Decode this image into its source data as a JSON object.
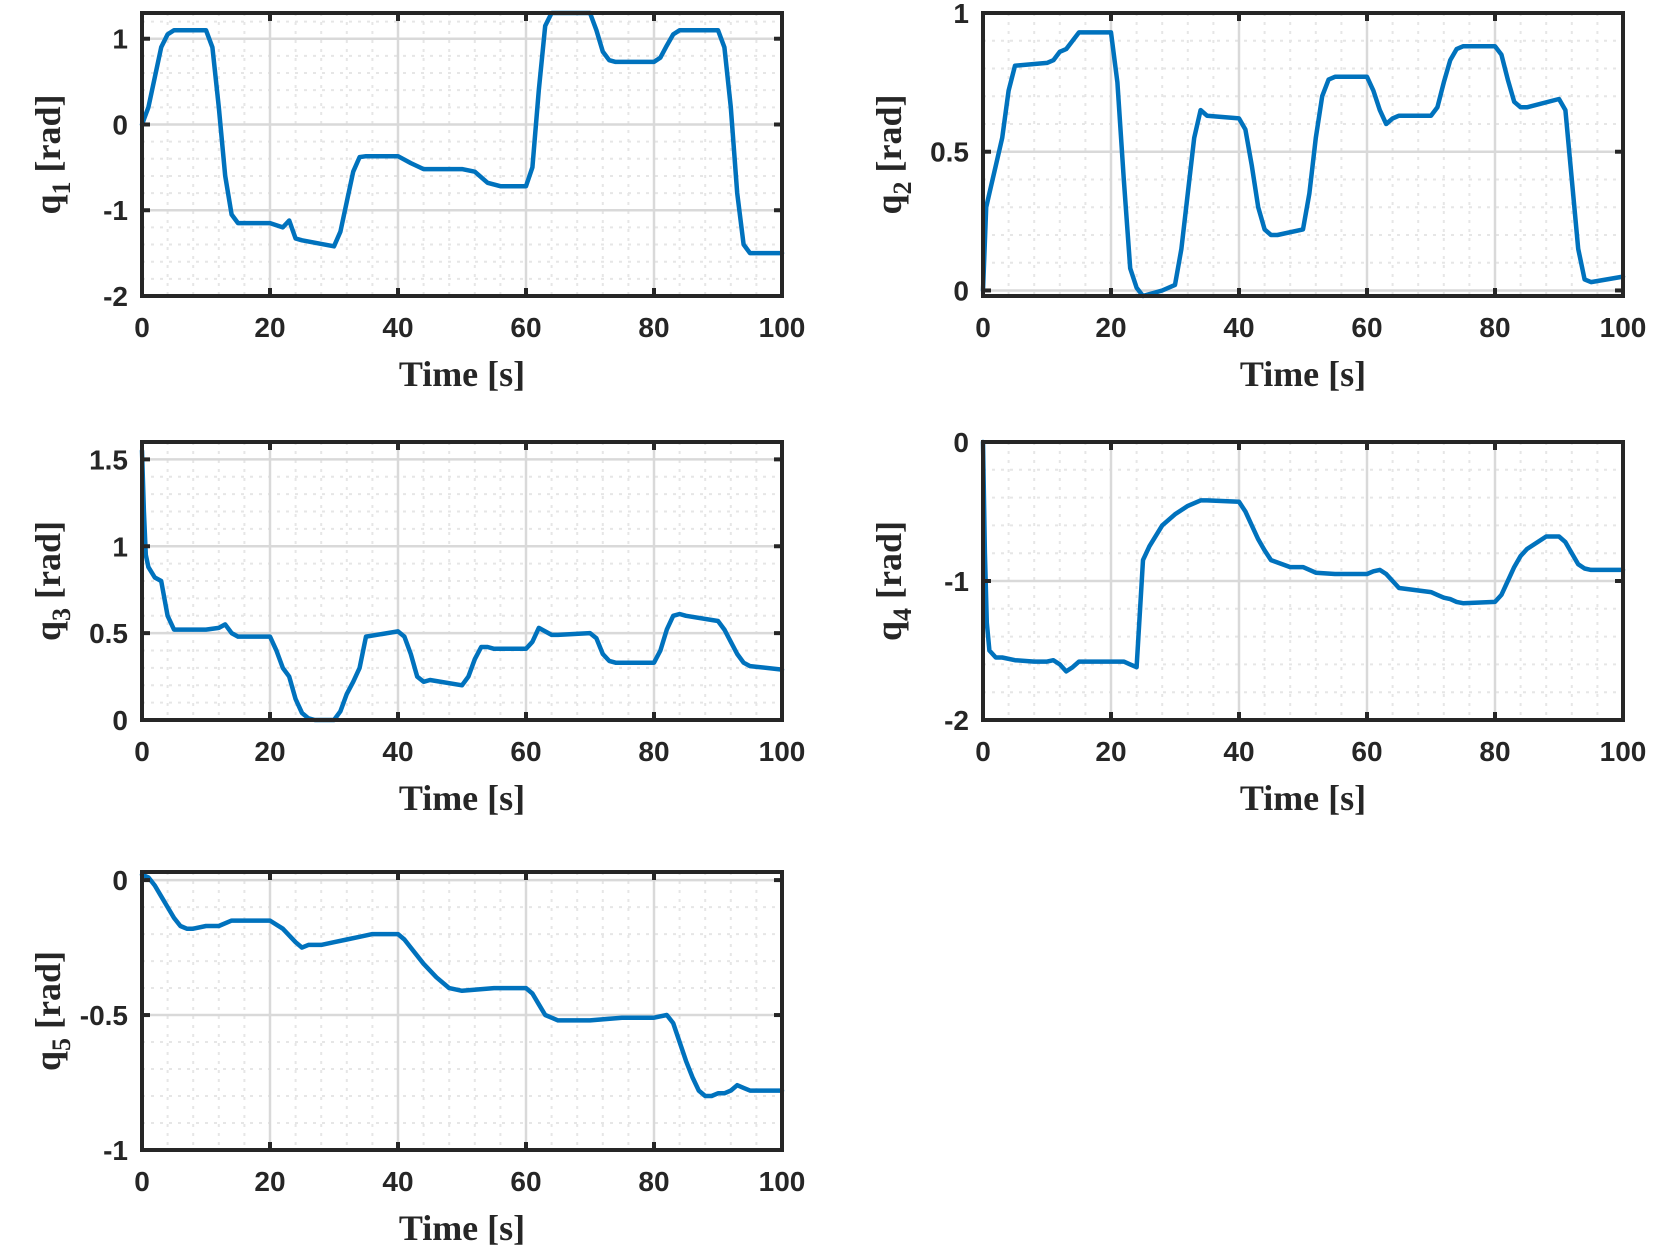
{
  "chart_data": [
    {
      "type": "line",
      "id": "q1",
      "ylabel_main": "q",
      "ylabel_sub": "1",
      "ylabel_unit": " [rad]",
      "xlabel": "Time [s]",
      "xlim": [
        0,
        100
      ],
      "ylim": [
        -2,
        1.3
      ],
      "xticks": [
        0,
        20,
        40,
        60,
        80,
        100
      ],
      "xtick_labels": [
        "0",
        "20",
        "40",
        "60",
        "80",
        "100"
      ],
      "yticks": [
        -2,
        -1,
        0,
        1
      ],
      "ytick_labels": [
        "-2",
        "-1",
        "0",
        "1"
      ],
      "grid": true,
      "series": [
        {
          "name": "q1",
          "color": "#0072BD",
          "x": [
            0,
            1,
            2,
            3,
            4,
            5,
            10,
            11,
            12,
            13,
            14,
            15,
            20,
            22,
            23,
            24,
            25,
            30,
            31,
            32,
            33,
            34,
            35,
            40,
            42,
            44,
            46,
            50,
            52,
            54,
            56,
            60,
            61,
            62,
            63,
            64,
            65,
            70,
            71,
            72,
            73,
            74,
            75,
            80,
            81,
            82,
            83,
            84,
            85,
            90,
            91,
            92,
            93,
            94,
            95,
            100
          ],
          "y": [
            0,
            0.2,
            0.55,
            0.9,
            1.05,
            1.1,
            1.1,
            0.9,
            0.2,
            -0.6,
            -1.05,
            -1.15,
            -1.15,
            -1.2,
            -1.12,
            -1.33,
            -1.35,
            -1.42,
            -1.25,
            -0.9,
            -0.55,
            -0.38,
            -0.37,
            -0.37,
            -0.45,
            -0.52,
            -0.52,
            -0.52,
            -0.55,
            -0.68,
            -0.72,
            -0.72,
            -0.5,
            0.4,
            1.15,
            1.3,
            1.3,
            1.3,
            1.1,
            0.85,
            0.75,
            0.73,
            0.73,
            0.73,
            0.78,
            0.92,
            1.05,
            1.1,
            1.1,
            1.1,
            0.9,
            0.2,
            -0.8,
            -1.4,
            -1.5,
            -1.5
          ]
        }
      ]
    },
    {
      "type": "line",
      "id": "q2",
      "ylabel_main": "q",
      "ylabel_sub": "2",
      "ylabel_unit": " [rad]",
      "xlabel": "Time [s]",
      "xlim": [
        0,
        100
      ],
      "ylim": [
        -0.02,
        1.0
      ],
      "xticks": [
        0,
        20,
        40,
        60,
        80,
        100
      ],
      "xtick_labels": [
        "0",
        "20",
        "40",
        "60",
        "80",
        "100"
      ],
      "yticks": [
        0,
        0.5,
        1
      ],
      "ytick_labels": [
        "0",
        "0.5",
        "1"
      ],
      "grid": true,
      "series": [
        {
          "name": "q2",
          "color": "#0072BD",
          "x": [
            0,
            0.5,
            1,
            2,
            3,
            4,
            5,
            10,
            11,
            12,
            13,
            14,
            15,
            20,
            21,
            22,
            23,
            24,
            25,
            28,
            30,
            31,
            32,
            33,
            34,
            35,
            40,
            41,
            42,
            43,
            44,
            45,
            46,
            50,
            51,
            52,
            53,
            54,
            55,
            60,
            61,
            62,
            63,
            64,
            65,
            70,
            71,
            72,
            73,
            74,
            75,
            80,
            81,
            82,
            83,
            84,
            85,
            90,
            91,
            92,
            93,
            94,
            95,
            100
          ],
          "y": [
            0,
            0.3,
            0.35,
            0.45,
            0.55,
            0.72,
            0.81,
            0.82,
            0.83,
            0.86,
            0.87,
            0.9,
            0.93,
            0.93,
            0.75,
            0.4,
            0.08,
            0.01,
            -0.02,
            0.0,
            0.02,
            0.15,
            0.35,
            0.55,
            0.65,
            0.63,
            0.62,
            0.58,
            0.45,
            0.3,
            0.22,
            0.2,
            0.2,
            0.22,
            0.35,
            0.55,
            0.7,
            0.76,
            0.77,
            0.77,
            0.72,
            0.65,
            0.6,
            0.62,
            0.63,
            0.63,
            0.66,
            0.75,
            0.83,
            0.87,
            0.88,
            0.88,
            0.85,
            0.76,
            0.68,
            0.66,
            0.66,
            0.69,
            0.65,
            0.4,
            0.15,
            0.04,
            0.03,
            0.05
          ]
        }
      ]
    },
    {
      "type": "line",
      "id": "q3",
      "ylabel_main": "q",
      "ylabel_sub": "3",
      "ylabel_unit": " [rad]",
      "xlabel": "Time [s]",
      "xlim": [
        0,
        100
      ],
      "ylim": [
        0,
        1.6
      ],
      "xticks": [
        0,
        20,
        40,
        60,
        80,
        100
      ],
      "xtick_labels": [
        "0",
        "20",
        "40",
        "60",
        "80",
        "100"
      ],
      "yticks": [
        0,
        0.5,
        1,
        1.5
      ],
      "ytick_labels": [
        "0",
        "0.5",
        "1",
        "1.5"
      ],
      "grid": true,
      "series": [
        {
          "name": "q3",
          "color": "#0072BD",
          "x": [
            0,
            0.3,
            0.6,
            1,
            2,
            3,
            4,
            5,
            10,
            12,
            13,
            14,
            15,
            20,
            21,
            22,
            23,
            24,
            25,
            26,
            27,
            30,
            31,
            32,
            33,
            34,
            35,
            40,
            41,
            42,
            43,
            44,
            45,
            50,
            51,
            52,
            53,
            54,
            55,
            60,
            61,
            62,
            63,
            64,
            65,
            70,
            71,
            72,
            73,
            74,
            75,
            80,
            81,
            82,
            83,
            84,
            85,
            90,
            91,
            92,
            93,
            94,
            95,
            100
          ],
          "y": [
            1.55,
            1.2,
            0.95,
            0.88,
            0.82,
            0.8,
            0.6,
            0.52,
            0.52,
            0.53,
            0.55,
            0.5,
            0.48,
            0.48,
            0.4,
            0.3,
            0.25,
            0.12,
            0.04,
            0.01,
            0.0,
            0.0,
            0.05,
            0.15,
            0.22,
            0.3,
            0.48,
            0.51,
            0.48,
            0.38,
            0.25,
            0.22,
            0.23,
            0.2,
            0.25,
            0.35,
            0.42,
            0.42,
            0.41,
            0.41,
            0.45,
            0.53,
            0.51,
            0.49,
            0.49,
            0.5,
            0.47,
            0.38,
            0.34,
            0.33,
            0.33,
            0.33,
            0.4,
            0.52,
            0.6,
            0.61,
            0.6,
            0.57,
            0.52,
            0.45,
            0.38,
            0.33,
            0.31,
            0.29
          ]
        }
      ]
    },
    {
      "type": "line",
      "id": "q4",
      "ylabel_main": "q",
      "ylabel_sub": "4",
      "ylabel_unit": " [rad]",
      "xlabel": "Time [s]",
      "xlim": [
        0,
        100
      ],
      "ylim": [
        -2,
        0
      ],
      "xticks": [
        0,
        20,
        40,
        60,
        80,
        100
      ],
      "xtick_labels": [
        "0",
        "20",
        "40",
        "60",
        "80",
        "100"
      ],
      "yticks": [
        -2,
        -1,
        0
      ],
      "ytick_labels": [
        "-2",
        "-1",
        "0"
      ],
      "grid": true,
      "series": [
        {
          "name": "q4",
          "color": "#0072BD",
          "x": [
            0,
            0.3,
            0.6,
            1,
            2,
            3,
            5,
            8,
            10,
            11,
            12,
            13,
            14,
            15,
            20,
            22,
            23,
            24,
            25,
            26,
            28,
            30,
            32,
            34,
            35,
            40,
            41,
            42,
            43,
            44,
            45,
            48,
            50,
            52,
            55,
            60,
            61,
            62,
            63,
            64,
            65,
            70,
            71,
            72,
            73,
            74,
            75,
            80,
            81,
            82,
            83,
            84,
            85,
            88,
            90,
            91,
            92,
            93,
            94,
            95,
            100
          ],
          "y": [
            0,
            -0.8,
            -1.3,
            -1.5,
            -1.55,
            -1.55,
            -1.57,
            -1.58,
            -1.58,
            -1.57,
            -1.6,
            -1.65,
            -1.62,
            -1.58,
            -1.58,
            -1.58,
            -1.6,
            -1.62,
            -0.85,
            -0.75,
            -0.6,
            -0.52,
            -0.46,
            -0.42,
            -0.42,
            -0.43,
            -0.5,
            -0.6,
            -0.7,
            -0.78,
            -0.85,
            -0.9,
            -0.9,
            -0.94,
            -0.95,
            -0.95,
            -0.93,
            -0.92,
            -0.95,
            -1.0,
            -1.05,
            -1.08,
            -1.1,
            -1.12,
            -1.13,
            -1.15,
            -1.16,
            -1.15,
            -1.1,
            -1.0,
            -0.9,
            -0.82,
            -0.77,
            -0.68,
            -0.68,
            -0.72,
            -0.8,
            -0.88,
            -0.91,
            -0.92,
            -0.92
          ]
        }
      ]
    },
    {
      "type": "line",
      "id": "q5",
      "ylabel_main": "q",
      "ylabel_sub": "5",
      "ylabel_unit": " [rad]",
      "xlabel": "Time [s]",
      "xlim": [
        0,
        100
      ],
      "ylim": [
        -1,
        0.03
      ],
      "xticks": [
        0,
        20,
        40,
        60,
        80,
        100
      ],
      "xtick_labels": [
        "0",
        "20",
        "40",
        "60",
        "80",
        "100"
      ],
      "yticks": [
        -1,
        -0.5,
        0
      ],
      "ytick_labels": [
        "-1",
        "-0.5",
        "0"
      ],
      "grid": true,
      "series": [
        {
          "name": "q5",
          "color": "#0072BD",
          "x": [
            0,
            1,
            2,
            3,
            4,
            5,
            6,
            7,
            8,
            10,
            12,
            14,
            16,
            20,
            22,
            24,
            25,
            26,
            28,
            30,
            32,
            34,
            36,
            40,
            41,
            42,
            44,
            46,
            48,
            50,
            55,
            60,
            61,
            62,
            63,
            64,
            65,
            66,
            68,
            70,
            75,
            80,
            82,
            83,
            84,
            85,
            86,
            87,
            88,
            89,
            90,
            91,
            92,
            93,
            94,
            95,
            100
          ],
          "y": [
            0.02,
            0.01,
            -0.02,
            -0.06,
            -0.1,
            -0.14,
            -0.17,
            -0.18,
            -0.18,
            -0.17,
            -0.17,
            -0.15,
            -0.15,
            -0.15,
            -0.18,
            -0.23,
            -0.25,
            -0.24,
            -0.24,
            -0.23,
            -0.22,
            -0.21,
            -0.2,
            -0.2,
            -0.22,
            -0.25,
            -0.31,
            -0.36,
            -0.4,
            -0.41,
            -0.4,
            -0.4,
            -0.42,
            -0.46,
            -0.5,
            -0.51,
            -0.52,
            -0.52,
            -0.52,
            -0.52,
            -0.51,
            -0.51,
            -0.5,
            -0.53,
            -0.6,
            -0.67,
            -0.73,
            -0.78,
            -0.8,
            -0.8,
            -0.79,
            -0.79,
            -0.78,
            -0.76,
            -0.77,
            -0.78,
            -0.78
          ]
        }
      ]
    }
  ]
}
